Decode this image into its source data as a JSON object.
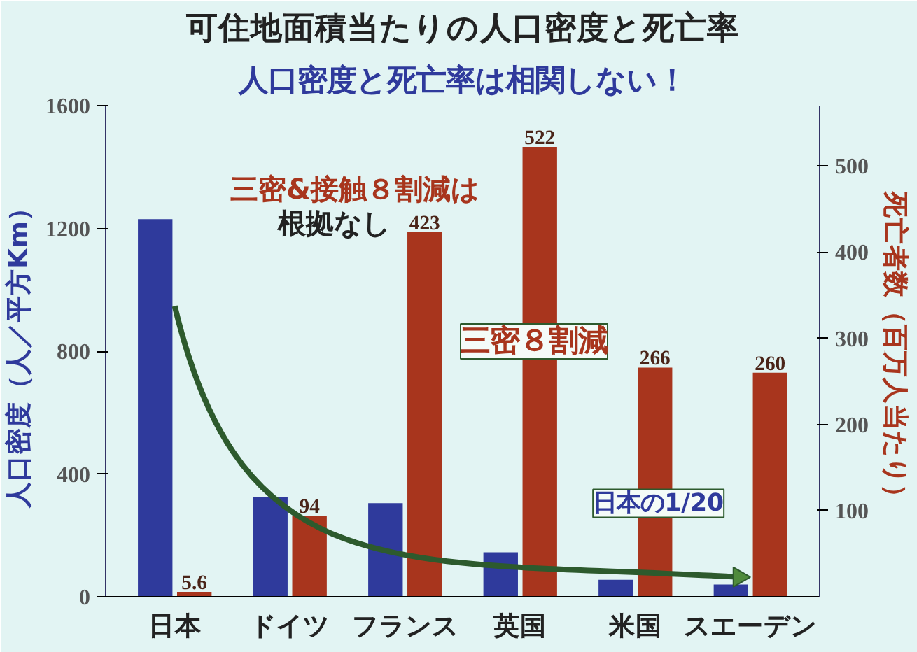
{
  "chart_data": {
    "type": "bar",
    "title": "可住地面積当たりの人口密度と死亡率",
    "subtitle": "人口密度と死亡率は相関しない！",
    "ylabel": "人口密度（人／平方Km）",
    "y2label": "死亡者数（百万人当たり）",
    "categories": [
      "日本",
      "ドイツ",
      "フランス",
      "英国",
      "米国",
      "スエーデン"
    ],
    "series": [
      {
        "color": "#2f3a9c",
        "values": [
          1230,
          325,
          305,
          145,
          55,
          40
        ]
      },
      {
        "color": "#a8351d",
        "axis": "y2",
        "values": [
          5.6,
          94,
          423,
          522,
          266,
          260
        ],
        "value_labels": [
          "5.6",
          "94",
          "423",
          "522",
          "266",
          "260"
        ]
      }
    ],
    "ylim": [
      0,
      1600
    ],
    "yticks": [
      0,
      400,
      800,
      1200,
      1600
    ],
    "y2lim": [
      0,
      570
    ],
    "y2ticks": [
      100,
      200,
      300,
      400,
      500
    ],
    "annotations": [
      "三密&接触８割減は",
      "根拠なし",
      "三密８割減",
      "日本の1/20"
    ],
    "grid": false
  }
}
